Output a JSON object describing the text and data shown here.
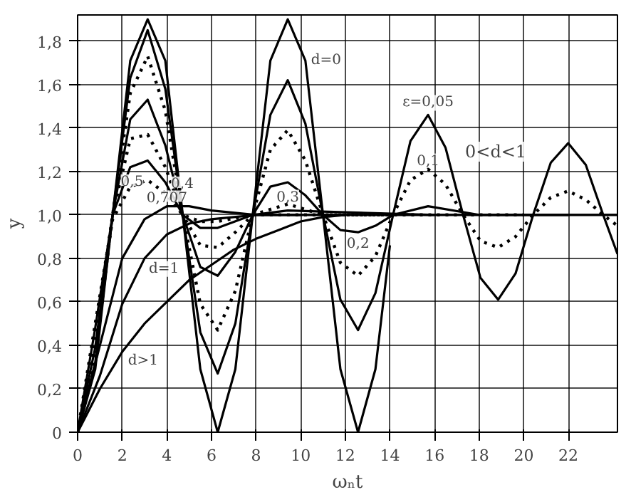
{
  "chart_data": {
    "type": "line",
    "xlabel": "ωₙt",
    "ylabel": "y",
    "xlim": [
      0,
      24.2
    ],
    "ylim": [
      0,
      1.92
    ],
    "xticks": [
      0,
      2,
      4,
      6,
      8,
      10,
      12,
      14,
      16,
      18,
      20,
      22
    ],
    "yticks": [
      0,
      {
        "value": 0.2,
        "label": "0,2"
      },
      {
        "value": 0.4,
        "label": "0,4"
      },
      {
        "value": 0.6,
        "label": "0,6"
      },
      {
        "value": 0.8,
        "label": "0,8"
      },
      {
        "value": 1.0,
        "label": "1,0"
      },
      {
        "value": 1.2,
        "label": "1,2"
      },
      {
        "value": 1.4,
        "label": "1,4"
      },
      {
        "value": 1.6,
        "label": "1,6"
      },
      {
        "value": 1.8,
        "label": "1,8"
      }
    ],
    "grid": true,
    "series": [
      {
        "name": "d=0",
        "color": "#000000",
        "line_style": "solid",
        "x": [
          0,
          0.79,
          1.57,
          2.36,
          3.14,
          3.93,
          4.71,
          5.5,
          6.28,
          7.07,
          7.85,
          8.64,
          9.42,
          10.21,
          11.0,
          11.78,
          12.57,
          13.35,
          14.0
        ],
        "values": [
          0,
          0.29,
          1.0,
          1.71,
          1.9,
          1.71,
          1.0,
          0.29,
          0,
          0.29,
          1.0,
          1.71,
          1.9,
          1.71,
          1.0,
          0.29,
          0,
          0.29,
          0.86
        ]
      },
      {
        "name": "ε=0,05",
        "color": "#000000",
        "line_style": "solid",
        "x": [
          0,
          0.79,
          1.57,
          2.36,
          3.14,
          3.93,
          4.71,
          5.5,
          6.28,
          7.07,
          7.85,
          8.64,
          9.42,
          10.21,
          11.0,
          11.78,
          12.57,
          13.35,
          14.14,
          14.92,
          15.71,
          16.49,
          17.28,
          18.06,
          18.85,
          19.63,
          20.42,
          21.21,
          21.99,
          22.78,
          23.56,
          24.2
        ],
        "values": [
          0,
          0.32,
          1.0,
          1.63,
          1.85,
          1.58,
          1.0,
          0.46,
          0.27,
          0.5,
          1.0,
          1.46,
          1.62,
          1.42,
          1.0,
          0.61,
          0.47,
          0.64,
          1.0,
          1.34,
          1.46,
          1.31,
          1.0,
          0.71,
          0.61,
          0.73,
          1.0,
          1.24,
          1.33,
          1.23,
          1.0,
          0.82
        ]
      },
      {
        "name": "0,1",
        "color": "#000000",
        "line_style": "dotted",
        "x": [
          0,
          0.79,
          1.57,
          2.36,
          3.14,
          3.93,
          4.71,
          5.5,
          6.28,
          7.07,
          7.85,
          8.64,
          9.42,
          10.21,
          11.0,
          11.78,
          12.57,
          13.35,
          14.14,
          14.92,
          15.71,
          16.49,
          17.28,
          18.06,
          18.85,
          19.63,
          20.42,
          21.21,
          21.99,
          22.78,
          23.56,
          24.2
        ],
        "values": [
          0,
          0.35,
          1.0,
          1.56,
          1.73,
          1.48,
          1.0,
          0.59,
          0.47,
          0.65,
          1.0,
          1.3,
          1.39,
          1.25,
          1.0,
          0.78,
          0.72,
          0.81,
          1.0,
          1.16,
          1.21,
          1.14,
          1.0,
          0.88,
          0.85,
          0.9,
          1.0,
          1.08,
          1.11,
          1.07,
          1.0,
          0.95
        ]
      },
      {
        "name": "0,2",
        "color": "#000000",
        "line_style": "solid",
        "x": [
          0,
          0.79,
          1.57,
          2.36,
          3.14,
          3.93,
          4.71,
          5.5,
          6.28,
          7.07,
          7.85,
          8.64,
          9.42,
          10.21,
          11.0,
          11.78,
          12.57,
          13.35,
          14.14,
          15.71,
          18.0,
          22.0
        ],
        "values": [
          0,
          0.39,
          1.0,
          1.44,
          1.53,
          1.32,
          1.0,
          0.76,
          0.72,
          0.83,
          1.0,
          1.13,
          1.15,
          1.09,
          1.0,
          0.93,
          0.92,
          0.95,
          1.0,
          1.04,
          1.0,
          1.0
        ]
      },
      {
        "name": "0,3",
        "color": "#000000",
        "line_style": "dotted",
        "x": [
          0,
          0.79,
          1.57,
          2.36,
          3.14,
          3.93,
          4.71,
          5.5,
          6.28,
          7.07,
          7.85,
          9.42,
          11.0,
          20.0
        ],
        "values": [
          0,
          0.44,
          1.0,
          1.35,
          1.37,
          1.22,
          1.0,
          0.86,
          0.85,
          0.92,
          1.0,
          1.05,
          1.0,
          1.0
        ]
      },
      {
        "name": "0,4",
        "color": "#000000",
        "line_style": "solid",
        "x": [
          0,
          0.79,
          1.57,
          2.36,
          3.14,
          3.93,
          4.71,
          5.5,
          6.28,
          7.85,
          9.42,
          16.0
        ],
        "values": [
          0,
          0.48,
          1.0,
          1.22,
          1.25,
          1.15,
          1.0,
          0.94,
          0.94,
          1.0,
          1.02,
          1.0
        ]
      },
      {
        "name": "0,5",
        "color": "#000000",
        "line_style": "dotted",
        "x": [
          0,
          0.79,
          1.57,
          2.36,
          3.14,
          3.93,
          4.71,
          5.5,
          6.28,
          7.85,
          14.0
        ],
        "values": [
          0,
          0.5,
          0.98,
          1.13,
          1.16,
          1.1,
          1.0,
          0.97,
          0.97,
          1.0,
          1.0
        ]
      },
      {
        "name": "0,707",
        "color": "#000000",
        "line_style": "solid",
        "x": [
          0,
          1,
          2,
          3,
          4,
          5,
          6,
          8,
          12.0
        ],
        "values": [
          0,
          0.4,
          0.8,
          0.98,
          1.04,
          1.04,
          1.02,
          1.0,
          1.0
        ]
      },
      {
        "name": "d=1",
        "color": "#000000",
        "line_style": "solid",
        "x": [
          0,
          1,
          2,
          3,
          4,
          5,
          6,
          8,
          10.0
        ],
        "values": [
          0,
          0.26,
          0.59,
          0.8,
          0.91,
          0.96,
          0.98,
          1.0,
          1.0
        ]
      },
      {
        "name": "d>1",
        "color": "#000000",
        "line_style": "solid",
        "x": [
          0,
          1,
          2,
          3,
          4,
          5,
          6,
          7,
          8,
          9,
          10,
          11,
          12,
          24.2
        ],
        "values": [
          0,
          0.2,
          0.37,
          0.5,
          0.6,
          0.7,
          0.77,
          0.84,
          0.89,
          0.93,
          0.97,
          0.99,
          1.0,
          1.0
        ]
      }
    ],
    "annotations": [
      "0<d<1"
    ]
  }
}
